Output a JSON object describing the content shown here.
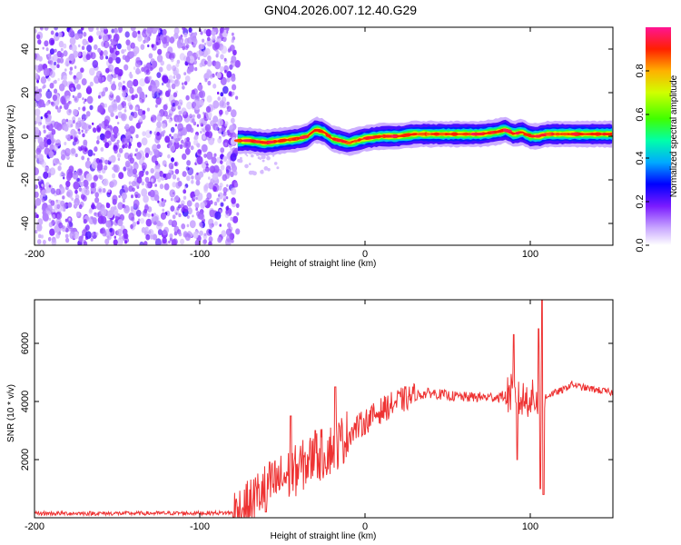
{
  "figure": {
    "title": "GN04.2026.007.12.40.G29"
  },
  "chart_data": [
    {
      "type": "heatmap",
      "title": "",
      "xlabel": "Height of straight line (km)",
      "ylabel": "Frequency (Hz)",
      "xlim": [
        -200,
        150
      ],
      "ylim": [
        -50,
        50
      ],
      "xticks": [
        -200,
        -100,
        0,
        100
      ],
      "yticks": [
        -40,
        -20,
        0,
        20,
        40
      ],
      "colorbar": {
        "label": "Normalized spectral amplitude",
        "range": [
          0,
          1
        ],
        "ticks": [
          0.0,
          0.2,
          0.4,
          0.6,
          0.8
        ],
        "tick_labels": [
          "0.0",
          "0.2",
          "0.4",
          "0.6",
          "0.8"
        ],
        "colormap": [
          "#ffffff",
          "#c8a6ff",
          "#6a00ff",
          "#0000ff",
          "#00c8ff",
          "#00ff80",
          "#80ff00",
          "#ffff00",
          "#ff8000",
          "#ff0000",
          "#ff1493"
        ]
      },
      "noise_region": {
        "x_range": [
          -200,
          -77
        ],
        "amplitude": [
          0.05,
          0.25
        ]
      },
      "ridge": {
        "x": [
          -77,
          -70,
          -60,
          -50,
          -40,
          -35,
          -30,
          -25,
          -20,
          -15,
          -10,
          0,
          10,
          20,
          30,
          40,
          50,
          60,
          70,
          80,
          85,
          90,
          95,
          100,
          105,
          110,
          120,
          130,
          140,
          150
        ],
        "freq": [
          -2,
          -2,
          -3,
          -2,
          -1,
          0,
          3,
          2,
          -1,
          -2,
          -3,
          -1,
          0,
          0,
          1,
          1,
          1,
          1,
          1,
          2,
          3,
          1,
          2,
          0,
          0,
          1,
          1,
          1,
          1,
          1
        ],
        "peak_amplitude": 0.95
      }
    },
    {
      "type": "line",
      "title": "",
      "xlabel": "Height of straight line (km)",
      "ylabel": "SNR (10 * v/v)",
      "xlim": [
        -200,
        150
      ],
      "ylim": [
        0,
        7500
      ],
      "xticks": [
        -200,
        -100,
        0,
        100
      ],
      "yticks": [
        2000,
        4000,
        6000
      ],
      "color": "#ee3333",
      "series": [
        {
          "name": "SNR",
          "x": [
            -200,
            -150,
            -100,
            -80,
            -70,
            -65,
            -60,
            -55,
            -50,
            -45,
            -40,
            -35,
            -30,
            -25,
            -20,
            -15,
            -10,
            -5,
            0,
            5,
            10,
            15,
            20,
            25,
            30,
            35,
            40,
            45,
            50,
            60,
            70,
            80,
            85,
            88,
            90,
            92,
            95,
            98,
            100,
            102,
            104,
            105,
            106,
            107,
            108,
            110,
            115,
            120,
            125,
            130,
            140,
            150
          ],
          "y": [
            150,
            150,
            160,
            170,
            400,
            800,
            1000,
            1200,
            1350,
            1500,
            1700,
            1900,
            2100,
            2200,
            2400,
            2600,
            2900,
            3100,
            3300,
            3500,
            3700,
            3850,
            4000,
            4100,
            4200,
            4250,
            4300,
            4250,
            4200,
            4150,
            4150,
            4150,
            4200,
            4300,
            4100,
            4000,
            4050,
            4100,
            4200,
            4000,
            4100,
            3900,
            4000,
            4100,
            3900,
            4200,
            4300,
            4400,
            4600,
            4500,
            4400,
            4300
          ]
        }
      ],
      "spikes": [
        {
          "x": -60,
          "y": 200
        },
        {
          "x": -45,
          "y": 3500
        },
        {
          "x": -30,
          "y": 3000
        },
        {
          "x": -18,
          "y": 4500
        },
        {
          "x": 90,
          "y": 6300
        },
        {
          "x": 92,
          "y": 2000
        },
        {
          "x": 105,
          "y": 6500
        },
        {
          "x": 106,
          "y": 1000
        },
        {
          "x": 107,
          "y": 7500
        },
        {
          "x": 108,
          "y": 800
        }
      ]
    }
  ]
}
